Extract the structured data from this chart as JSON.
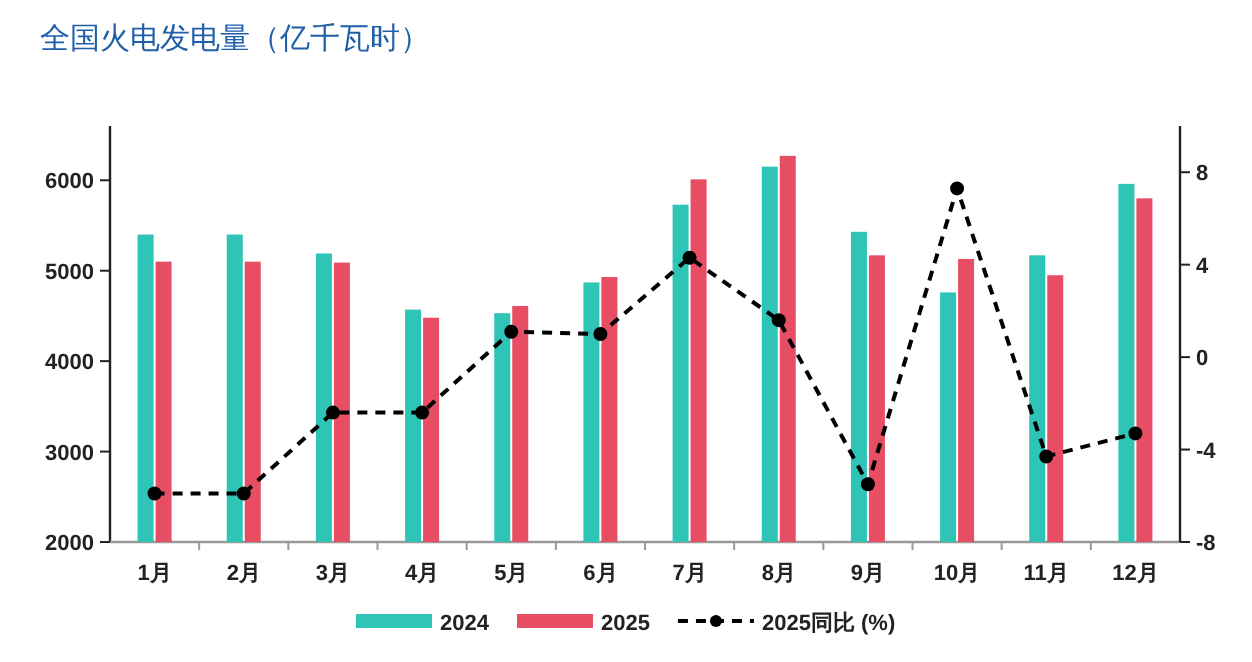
{
  "chart_data": {
    "type": "bar",
    "title": "全国火电发电量（亿千瓦时）",
    "categories": [
      "1月",
      "2月",
      "3月",
      "4月",
      "5月",
      "6月",
      "7月",
      "8月",
      "9月",
      "10月",
      "11月",
      "12月"
    ],
    "series": [
      {
        "name": "2024",
        "color": "#2ec4b6",
        "values": [
          5400,
          5400,
          5190,
          4570,
          4530,
          4870,
          5730,
          6150,
          5430,
          4760,
          5170,
          5960
        ]
      },
      {
        "name": "2025",
        "color": "#e84e63",
        "values": [
          5100,
          5100,
          5090,
          4480,
          4610,
          4930,
          6010,
          6270,
          5170,
          5130,
          4950,
          5800
        ]
      },
      {
        "name": "2025同比 (%)",
        "type": "line",
        "axis": "y2",
        "color": "#000000",
        "marker": "circle",
        "line_style": "dashed",
        "values": [
          -5.9,
          -5.9,
          -2.4,
          -2.4,
          1.1,
          1.0,
          4.3,
          1.6,
          -5.5,
          7.3,
          -4.3,
          -3.3
        ]
      }
    ],
    "ylim": [
      2000,
      6600
    ],
    "yticks": [
      2000,
      3000,
      4000,
      5000,
      6000
    ],
    "y2lim": [
      -8,
      10
    ],
    "y2ticks": [
      -8,
      -4,
      0,
      4,
      8
    ],
    "grid": false,
    "legend": "bottom"
  }
}
